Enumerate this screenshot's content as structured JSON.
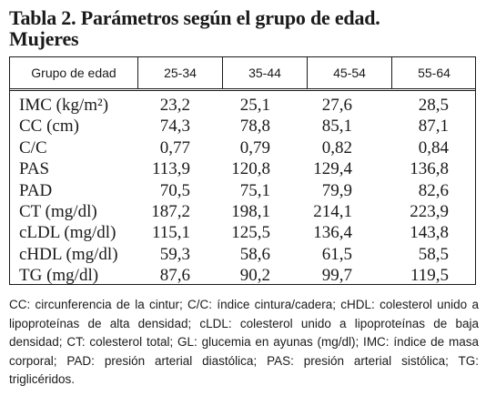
{
  "title_line1": "Tabla 2. Parámetros según el grupo de edad.",
  "title_line2": "Mujeres",
  "table": {
    "headers": [
      "Grupo de edad",
      "25-34",
      "35-44",
      "45-54",
      "55-64"
    ],
    "rows": [
      {
        "label": "IMC (kg/m²)",
        "values": [
          "23,2",
          "25,1",
          "27,6",
          "28,5"
        ]
      },
      {
        "label": "CC (cm)",
        "values": [
          "74,3",
          "78,8",
          "85,1",
          "87,1"
        ]
      },
      {
        "label": "C/C",
        "values": [
          "0,77",
          "0,79",
          "0,82",
          "0,84"
        ]
      },
      {
        "label": "PAS",
        "values": [
          "113,9",
          "120,8",
          "129,4",
          "136,8"
        ]
      },
      {
        "label": "PAD",
        "values": [
          "70,5",
          "75,1",
          "79,9",
          "82,6"
        ]
      },
      {
        "label": "CT (mg/dl)",
        "values": [
          "187,2",
          "198,1",
          "214,1",
          "223,9"
        ]
      },
      {
        "label": "cLDL (mg/dl)",
        "values": [
          "115,1",
          "125,5",
          "136,4",
          "143,8"
        ]
      },
      {
        "label": "cHDL (mg/dl)",
        "values": [
          "59,3",
          "58,6",
          "61,5",
          "58,5"
        ]
      },
      {
        "label": "TG (mg/dl)",
        "values": [
          "87,6",
          "90,2",
          "99,7",
          "119,5"
        ]
      }
    ]
  },
  "note": "CC: circunferencia de la cintur; C/C: índice cintura/cadera; cHDL: colesterol unido a lipoproteínas de alta densidad; cLDL: colesterol unido a lipoproteínas de baja densidad; CT: colesterol total; GL: glucemia en ayunas (mg/dl); IMC: índice de masa corporal; PAD: presión arterial diastólica; PAS: presión arterial sistólica; TG: triglicéridos."
}
